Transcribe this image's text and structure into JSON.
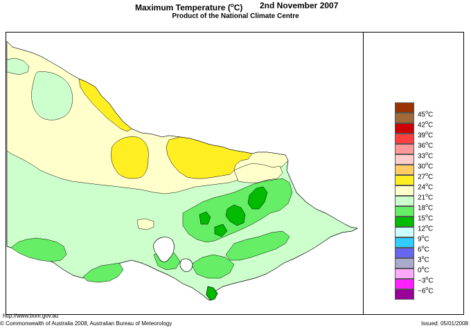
{
  "title": {
    "main": "Maximum Temperature (",
    "degree": "o",
    "main_end": "C)",
    "date": "2nd November 2007"
  },
  "subtitle": "Product of the National Climate Centre",
  "legend": [
    {
      "label": "45",
      "unit": "C",
      "color": "#993300"
    },
    {
      "label": "42",
      "unit": "C",
      "color": "#a06a38"
    },
    {
      "label": "39",
      "unit": "C",
      "color": "#cc0000"
    },
    {
      "label": "36",
      "unit": "C",
      "color": "#ff4040"
    },
    {
      "label": "33",
      "unit": "C",
      "color": "#ff9999"
    },
    {
      "label": "30",
      "unit": "C",
      "color": "#ffcccc"
    },
    {
      "label": "27",
      "unit": "C",
      "color": "#ffcc66"
    },
    {
      "label": "24",
      "unit": "C",
      "color": "#ffee22"
    },
    {
      "label": "21",
      "unit": "C",
      "color": "#ffffcc"
    },
    {
      "label": "18",
      "unit": "C",
      "color": "#ccffcc"
    },
    {
      "label": "15",
      "unit": "C",
      "color": "#66ee66"
    },
    {
      "label": "12",
      "unit": "C",
      "color": "#00bb00"
    },
    {
      "label": "9",
      "unit": "C",
      "color": "#ccffff"
    },
    {
      "label": "6",
      "unit": "C",
      "color": "#33ccff"
    },
    {
      "label": "3",
      "unit": "C",
      "color": "#6666ee"
    },
    {
      "label": "0",
      "unit": "C",
      "color": "#aaaacc"
    },
    {
      "label": "−3",
      "unit": "C",
      "color": "#ffaaff"
    },
    {
      "label": "−6",
      "unit": "C",
      "color": "#ff22ff"
    },
    {
      "label": "",
      "unit": "",
      "color": "#990099"
    }
  ],
  "footer": {
    "url": "http://www.bom.gov.au",
    "copyright": "© Commonwealth of Australia 2008, Australian Bureau of Meteorology",
    "issued": "Issued: 05/01/2008"
  },
  "map_colors": {
    "t18_21": "#ccffcc",
    "t21_24": "#ffffcc",
    "t24_27": "#ffee22",
    "t15_18": "#66ee66",
    "t12_15": "#00bb00",
    "water": "#ffffff",
    "outline": "#000000"
  }
}
